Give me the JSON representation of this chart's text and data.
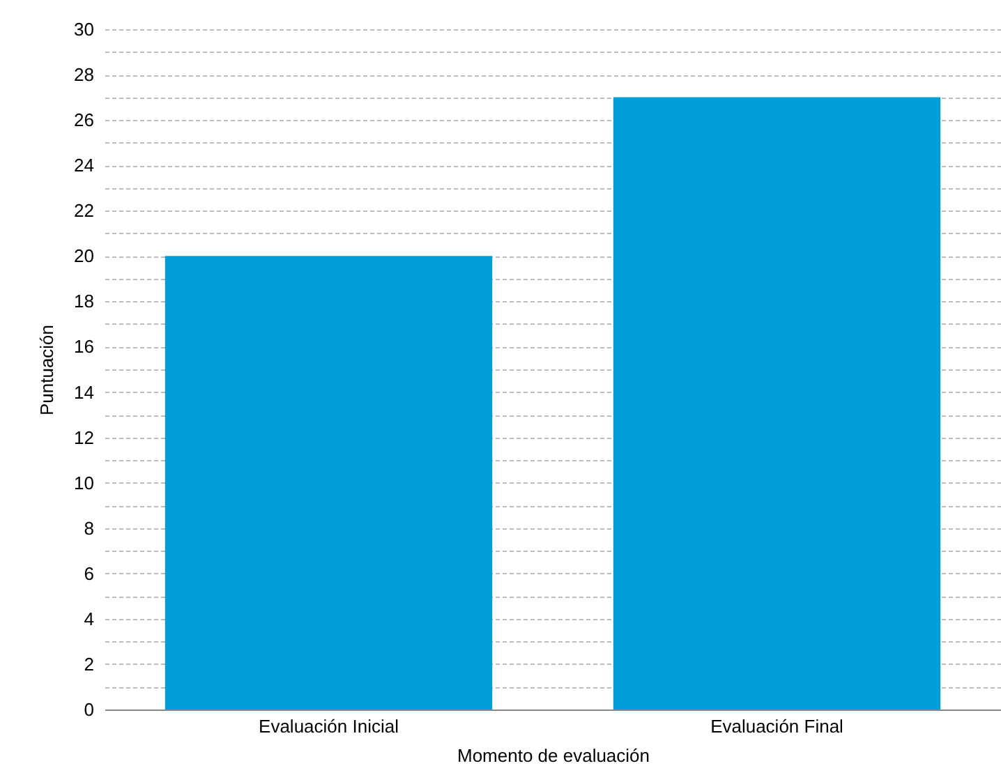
{
  "chart_data": {
    "type": "bar",
    "xlabel": "Momento de evaluación",
    "ylabel": "Puntuación",
    "categories": [
      "Evaluación Inicial",
      "Evaluación Final"
    ],
    "values": [
      20,
      27
    ],
    "color": "#009fdb",
    "ylim": [
      0,
      30
    ],
    "yticks": [
      0,
      {
        "value": 1,
        "label": null
      },
      2,
      {
        "value": 3,
        "label": null
      },
      4,
      {
        "value": 5,
        "label": null
      },
      6,
      {
        "value": 7,
        "label": null
      },
      8,
      {
        "value": 9,
        "label": null
      },
      10,
      {
        "value": 11,
        "label": null
      },
      12,
      {
        "value": 13,
        "label": null
      },
      14,
      {
        "value": 15,
        "label": null
      },
      16,
      {
        "value": 17,
        "label": null
      },
      18,
      {
        "value": 19,
        "label": null
      },
      20,
      {
        "value": 21,
        "label": null
      },
      22,
      {
        "value": 23,
        "label": null
      },
      24,
      {
        "value": 25,
        "label": null
      },
      26,
      {
        "value": 27,
        "label": null
      },
      28,
      {
        "value": 29,
        "label": null
      },
      30
    ],
    "grid": "y"
  }
}
